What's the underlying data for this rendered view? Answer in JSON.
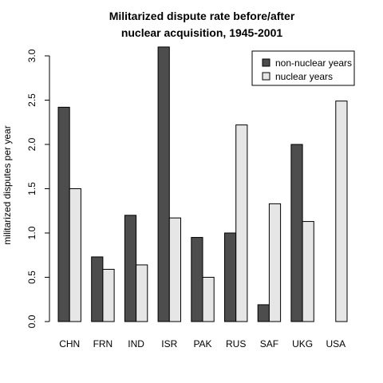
{
  "chart_data": {
    "type": "bar",
    "title": [
      "Militarized dispute rate before/after",
      "nuclear acquisition, 1945-2001"
    ],
    "xlabel": "",
    "ylabel": "militarized disputes per year",
    "ylim": [
      0,
      3.0
    ],
    "yticks": [
      "0.0",
      "0.5",
      "1.0",
      "1.5",
      "2.0",
      "2.5",
      "3.0"
    ],
    "categories": [
      "CHN",
      "FRN",
      "IND",
      "ISR",
      "PAK",
      "RUS",
      "SAF",
      "UKG",
      "USA"
    ],
    "series": [
      {
        "name": "non-nuclear years",
        "color": "#4d4d4d",
        "values": [
          2.42,
          0.73,
          1.2,
          3.1,
          0.95,
          1.0,
          0.19,
          2.0,
          0
        ]
      },
      {
        "name": "nuclear years",
        "color": "#e6e6e6",
        "values": [
          1.5,
          0.59,
          0.64,
          1.17,
          0.5,
          2.22,
          1.33,
          1.13,
          2.49
        ]
      }
    ],
    "legend_position": "top-right",
    "grid": false
  }
}
